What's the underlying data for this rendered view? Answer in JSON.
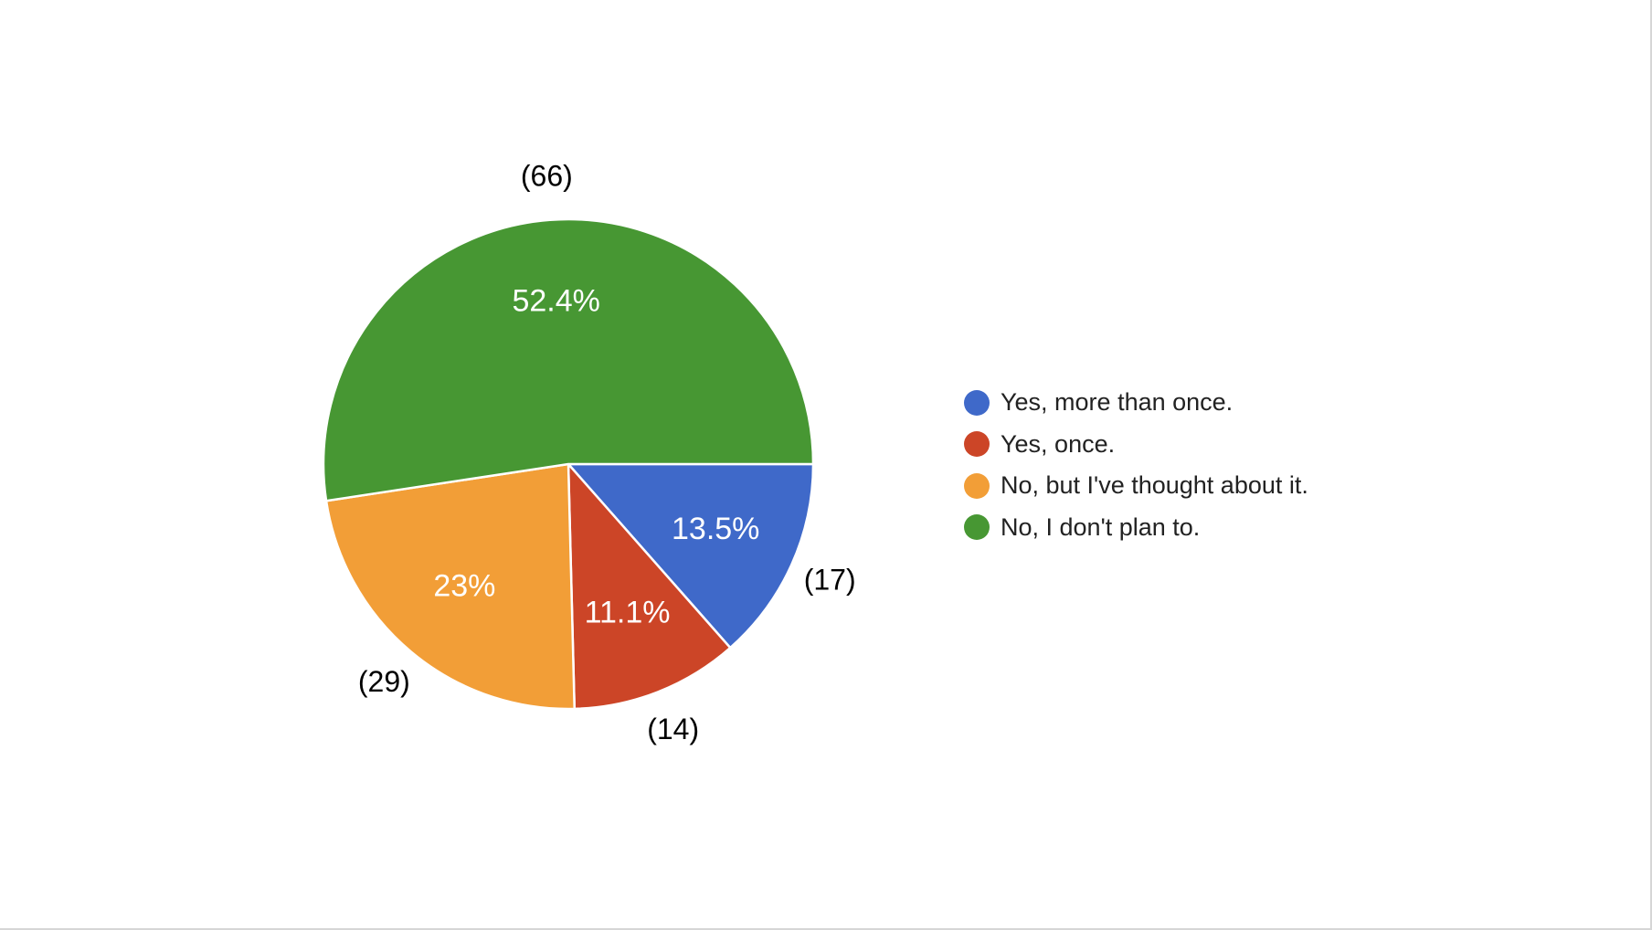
{
  "chart_data": {
    "type": "pie",
    "start_angle_deg": 90,
    "direction": "clockwise",
    "slices": [
      {
        "label": "Yes, more than once.",
        "count": 17,
        "count_label": "(17)",
        "percent_label": "13.5%",
        "value": 13.5,
        "color": "#3f69c9"
      },
      {
        "label": "Yes, once.",
        "count": 14,
        "count_label": "(14)",
        "percent_label": "11.1%",
        "value": 11.1,
        "color": "#cc4527"
      },
      {
        "label": "No, but I've thought about it.",
        "count": 29,
        "count_label": "(29)",
        "percent_label": "23%",
        "value": 23.0,
        "color": "#f29e37"
      },
      {
        "label": "No, I don't plan to.",
        "count": 66,
        "count_label": "(66)",
        "percent_label": "52.4%",
        "value": 52.4,
        "color": "#479733"
      }
    ],
    "legend_position": "right"
  }
}
